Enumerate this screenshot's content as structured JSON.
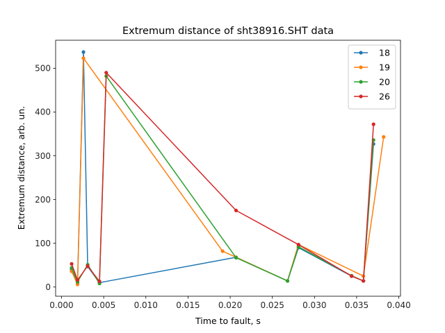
{
  "chart_data": {
    "type": "line",
    "title": "Extremum distance of sht38916.SHT data",
    "xlabel": "Time to fault, s",
    "ylabel": "Extremum distance, arb. un.",
    "xlim": [
      -0.0007,
      0.0402
    ],
    "ylim": [
      -21,
      564
    ],
    "xticks": [
      0.0,
      0.005,
      0.01,
      0.015,
      0.02,
      0.025,
      0.03,
      0.035,
      0.04
    ],
    "xtick_labels": [
      "0.000",
      "0.005",
      "0.010",
      "0.015",
      "0.020",
      "0.025",
      "0.030",
      "0.035",
      "0.040"
    ],
    "yticks": [
      0,
      100,
      200,
      300,
      400,
      500
    ],
    "ytick_labels": [
      "0",
      "100",
      "200",
      "300",
      "400",
      "500"
    ],
    "grid": false,
    "legend_position": "top-right",
    "series": [
      {
        "name": "18",
        "color": "#1f77b4",
        "x": [
          0.0012,
          0.0019,
          0.0026,
          0.0031,
          0.0045,
          0.0207,
          0.0268,
          0.0281,
          0.0344,
          0.0358,
          0.037
        ],
        "y": [
          40,
          10,
          537,
          47,
          10,
          68,
          14,
          90,
          25,
          14,
          327
        ]
      },
      {
        "name": "19",
        "color": "#ff7f0e",
        "x": [
          0.0012,
          0.0019,
          0.0026,
          0.0191,
          0.0207,
          0.0268,
          0.0281,
          0.0358,
          0.0382
        ],
        "y": [
          36,
          6,
          523,
          82,
          68,
          14,
          97,
          25,
          343
        ]
      },
      {
        "name": "20",
        "color": "#2ca02c",
        "x": [
          0.0012,
          0.0019,
          0.0031,
          0.0045,
          0.0053,
          0.0207,
          0.0268,
          0.0281,
          0.0344,
          0.0358,
          0.037
        ],
        "y": [
          44,
          12,
          51,
          8,
          482,
          67,
          14,
          92,
          26,
          14,
          336
        ]
      },
      {
        "name": "26",
        "color": "#d62728",
        "x": [
          0.0012,
          0.0019,
          0.0031,
          0.0045,
          0.0053,
          0.0207,
          0.0281,
          0.0344,
          0.0358,
          0.037
        ],
        "y": [
          53,
          16,
          48,
          13,
          490,
          175,
          97,
          25,
          14,
          372
        ]
      }
    ]
  }
}
